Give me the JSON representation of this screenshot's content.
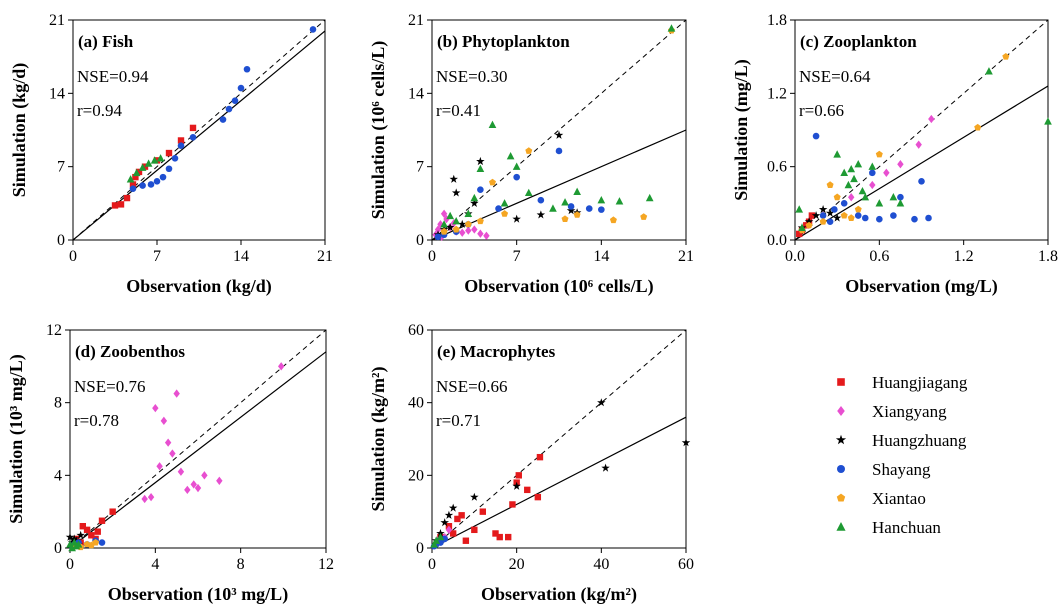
{
  "series_styles": [
    {
      "name": "Huangjiagang",
      "color": "#e41a1c",
      "marker": "square"
    },
    {
      "name": "Xiangyang",
      "color": "#e84fd0",
      "marker": "diamond"
    },
    {
      "name": "Huangzhuang",
      "color": "#000000",
      "marker": "star"
    },
    {
      "name": "Shayang",
      "color": "#1f4fd1",
      "marker": "circle"
    },
    {
      "name": "Xiantao",
      "color": "#f5a623",
      "marker": "pentagon"
    },
    {
      "name": "Hanchuan",
      "color": "#1e9a33",
      "marker": "triangle"
    }
  ],
  "chart_data": [
    {
      "type": "scatter",
      "title": "(a) Fish",
      "nse": "NSE=0.94",
      "r": "r=0.94",
      "xlabel": "Observation (kg/d)",
      "ylabel": "Simulation (kg/d)",
      "xlim": [
        0,
        21
      ],
      "ylim": [
        0,
        21
      ],
      "xticks": [
        "0",
        "7",
        "14",
        "21"
      ],
      "yticks": [
        "0",
        "7",
        "14",
        "21"
      ],
      "fit_slope": 0.95,
      "show_one_to_one": true,
      "series": [
        {
          "name": "Huangjiagang",
          "x": [
            3.5,
            4.0,
            4.5,
            5.0,
            5.2,
            5.5,
            6.0,
            7.0,
            8.0,
            9.0,
            10.0
          ],
          "y": [
            3.3,
            3.4,
            4.0,
            5.3,
            6.0,
            6.5,
            7.0,
            7.6,
            8.3,
            9.5,
            10.7
          ]
        },
        {
          "name": "Shayang",
          "x": [
            5.0,
            5.8,
            6.5,
            7.0,
            7.5,
            8.0,
            8.5,
            9.0,
            10.0,
            12.5,
            13.0,
            13.5,
            14.0,
            14.5,
            20.0
          ],
          "y": [
            4.9,
            5.2,
            5.3,
            5.6,
            6.0,
            6.8,
            7.8,
            9.0,
            9.8,
            11.5,
            12.5,
            13.3,
            14.5,
            16.3,
            20.1
          ]
        },
        {
          "name": "Hanchuan",
          "x": [
            4.8,
            5.3,
            5.8,
            6.3,
            6.8,
            7.3
          ],
          "y": [
            5.8,
            6.4,
            6.9,
            7.3,
            7.6,
            7.8
          ]
        }
      ]
    },
    {
      "type": "scatter",
      "title": "(b) Phytoplankton",
      "nse": "NSE=0.30",
      "r": "r=0.41",
      "xlabel": "Observation (10⁶ cells/L)",
      "ylabel": "Simulation (10⁶ cells/L)",
      "xlim": [
        0,
        21
      ],
      "ylim": [
        0,
        21
      ],
      "xticks": [
        "0",
        "7",
        "14",
        "21"
      ],
      "yticks": [
        "0",
        "7",
        "14",
        "21"
      ],
      "fit_slope": 0.5,
      "show_one_to_one": true,
      "series": [
        {
          "name": "Xiangyang",
          "x": [
            0.3,
            0.5,
            0.7,
            1.0,
            1.2,
            1.5,
            2.0,
            2.5,
            3.0,
            3.5,
            4.0,
            4.5,
            0.8,
            1.8
          ],
          "y": [
            0.5,
            1.0,
            1.5,
            2.5,
            2.0,
            1.2,
            0.8,
            0.7,
            0.9,
            1.0,
            0.6,
            0.4,
            0.3,
            1.6
          ]
        },
        {
          "name": "Huangzhuang",
          "x": [
            0.5,
            1.0,
            1.5,
            2.0,
            1.8,
            3.0,
            4.0,
            7.0,
            9.0,
            10.5,
            12.0,
            11.5,
            2.5,
            3.5
          ],
          "y": [
            0.5,
            1.0,
            1.2,
            4.5,
            5.8,
            2.5,
            7.5,
            2.0,
            2.4,
            10.0,
            2.6,
            2.8,
            1.5,
            3.5
          ]
        },
        {
          "name": "Shayang",
          "x": [
            0.5,
            1.0,
            2.0,
            3.0,
            4.0,
            5.5,
            7.0,
            9.0,
            10.5,
            11.5,
            13.0,
            14.0
          ],
          "y": [
            0.3,
            0.5,
            0.8,
            1.5,
            4.8,
            3.0,
            6.0,
            3.8,
            8.5,
            3.2,
            3.0,
            2.9
          ]
        },
        {
          "name": "Xiantao",
          "x": [
            1.0,
            2.0,
            3.0,
            4.0,
            5.0,
            6.0,
            8.0,
            11.0,
            12.0,
            15.0,
            17.5,
            19.8
          ],
          "y": [
            0.8,
            1.0,
            1.5,
            1.8,
            5.5,
            2.5,
            8.5,
            2.0,
            2.4,
            1.9,
            2.2,
            20.0
          ]
        },
        {
          "name": "Hanchuan",
          "x": [
            1.0,
            1.5,
            2.0,
            3.0,
            3.5,
            4.0,
            5.0,
            6.0,
            6.5,
            7.0,
            8.0,
            10.0,
            11.0,
            12.0,
            14.0,
            15.5,
            18.0,
            19.8
          ],
          "y": [
            1.5,
            2.3,
            1.8,
            2.5,
            4.0,
            6.8,
            11.0,
            3.5,
            8.0,
            7.0,
            4.5,
            3.0,
            3.6,
            4.6,
            3.8,
            3.7,
            4.0,
            20.2
          ]
        }
      ]
    },
    {
      "type": "scatter",
      "title": "(c) Zooplankton",
      "nse": "NSE=0.64",
      "r": "r=0.66",
      "xlabel": "Observation (mg/L)",
      "ylabel": "Simulation (mg/L)",
      "xlim": [
        0,
        1.8
      ],
      "ylim": [
        0,
        1.8
      ],
      "xticks": [
        "0.0",
        "0.6",
        "1.2",
        "1.8"
      ],
      "yticks": [
        "0.0",
        "0.6",
        "1.2",
        "1.8"
      ],
      "fit_slope": 0.7,
      "show_one_to_one": true,
      "series": [
        {
          "name": "Huangjiagang",
          "x": [
            0.03,
            0.05,
            0.08,
            0.1,
            0.12
          ],
          "y": [
            0.05,
            0.08,
            0.12,
            0.15,
            0.2
          ]
        },
        {
          "name": "Xiangyang",
          "x": [
            0.2,
            0.4,
            0.55,
            0.65,
            0.75,
            0.88,
            0.97
          ],
          "y": [
            0.2,
            0.35,
            0.45,
            0.55,
            0.62,
            0.78,
            0.99
          ]
        },
        {
          "name": "Huangzhuang",
          "x": [
            0.05,
            0.1,
            0.15,
            0.2,
            0.25,
            0.3
          ],
          "y": [
            0.1,
            0.15,
            0.2,
            0.25,
            0.22,
            0.18
          ]
        },
        {
          "name": "Shayang",
          "x": [
            0.15,
            0.2,
            0.25,
            0.28,
            0.35,
            0.45,
            0.5,
            0.55,
            0.6,
            0.7,
            0.75,
            0.85,
            0.9,
            0.95
          ],
          "y": [
            0.85,
            0.2,
            0.15,
            0.25,
            0.3,
            0.2,
            0.18,
            0.55,
            0.17,
            0.2,
            0.35,
            0.17,
            0.48,
            0.18
          ]
        },
        {
          "name": "Xiantao",
          "x": [
            0.05,
            0.1,
            0.2,
            0.25,
            0.3,
            0.35,
            0.4,
            0.45,
            0.6,
            1.3,
            1.5
          ],
          "y": [
            0.08,
            0.12,
            0.15,
            0.45,
            0.35,
            0.2,
            0.18,
            0.25,
            0.7,
            0.92,
            1.5
          ]
        },
        {
          "name": "Hanchuan",
          "x": [
            0.03,
            0.05,
            0.3,
            0.35,
            0.38,
            0.4,
            0.42,
            0.45,
            0.48,
            0.5,
            0.55,
            0.6,
            0.7,
            0.75,
            1.38,
            1.8
          ],
          "y": [
            0.25,
            0.1,
            0.7,
            0.55,
            0.45,
            0.58,
            0.5,
            0.62,
            0.4,
            0.35,
            0.6,
            0.3,
            0.35,
            0.3,
            1.38,
            0.97
          ]
        }
      ]
    },
    {
      "type": "scatter",
      "title": "(d) Zoobenthos",
      "nse": "NSE=0.76",
      "r": "r=0.78",
      "xlabel": "Observation (10³ mg/L)",
      "ylabel": "Simulation (10³ mg/L)",
      "xlim": [
        0,
        12
      ],
      "ylim": [
        0,
        12
      ],
      "xticks": [
        "0",
        "4",
        "8",
        "12"
      ],
      "yticks": [
        "0",
        "4",
        "8",
        "12"
      ],
      "fit_slope": 0.9,
      "show_one_to_one": true,
      "series": [
        {
          "name": "Huangjiagang",
          "x": [
            0.3,
            0.5,
            0.8,
            1.0,
            1.2,
            1.5,
            2.0,
            0.6,
            1.3
          ],
          "y": [
            0.5,
            0.3,
            1.0,
            0.7,
            0.5,
            1.5,
            2.0,
            1.2,
            0.9
          ]
        },
        {
          "name": "Xiangyang",
          "x": [
            3.5,
            3.8,
            4.0,
            4.2,
            4.4,
            4.6,
            4.8,
            5.0,
            5.2,
            5.5,
            5.8,
            6.0,
            6.3,
            7.0,
            9.9
          ],
          "y": [
            2.7,
            2.8,
            7.7,
            4.5,
            7.0,
            5.8,
            5.2,
            8.5,
            4.2,
            3.2,
            3.5,
            3.3,
            4.0,
            3.7,
            10.0
          ]
        },
        {
          "name": "Huangzhuang",
          "x": [
            0.0,
            0.1,
            0.2,
            0.3,
            0.4,
            0.5
          ],
          "y": [
            0.6,
            0.3,
            0.5,
            0.4,
            0.2,
            0.7
          ]
        },
        {
          "name": "Shayang",
          "x": [
            0.1,
            0.2,
            0.4,
            0.8,
            1.2,
            1.5
          ],
          "y": [
            0.1,
            0.2,
            0.3,
            0.2,
            0.4,
            0.3
          ]
        },
        {
          "name": "Xiantao",
          "x": [
            0.2,
            0.5,
            0.8,
            1.0,
            1.2
          ],
          "y": [
            0.1,
            0.05,
            0.2,
            0.15,
            0.3
          ]
        },
        {
          "name": "Hanchuan",
          "x": [
            0.0,
            0.1,
            0.2,
            0.3,
            0.4
          ],
          "y": [
            0.2,
            0.0,
            0.3,
            0.1,
            0.2
          ]
        }
      ]
    },
    {
      "type": "scatter",
      "title": "(e) Macrophytes",
      "nse": "NSE=0.66",
      "r": "r=0.71",
      "xlabel": "Observation (kg/m²)",
      "ylabel": "Simulation (kg/m²)",
      "xlim": [
        0,
        60
      ],
      "ylim": [
        0,
        60
      ],
      "xticks": [
        "0",
        "20",
        "40",
        "60"
      ],
      "yticks": [
        "0",
        "20",
        "40",
        "60"
      ],
      "fit_slope": 0.6,
      "show_one_to_one": true,
      "series": [
        {
          "name": "Huangjiagang",
          "x": [
            2,
            4,
            5,
            6,
            7,
            8,
            10,
            12,
            15,
            16,
            18,
            19,
            20,
            20.5,
            22.5,
            25,
            25.5
          ],
          "y": [
            3,
            6,
            4,
            8,
            9,
            2,
            5,
            10,
            4,
            3,
            3,
            12,
            18,
            20,
            16,
            14,
            25
          ]
        },
        {
          "name": "Xiangyang",
          "x": [
            1,
            2,
            3,
            4
          ],
          "y": [
            1.5,
            2.5,
            3,
            5
          ]
        },
        {
          "name": "Huangzhuang",
          "x": [
            1,
            2,
            3,
            4,
            5,
            10,
            20,
            40,
            41,
            60
          ],
          "y": [
            2,
            4,
            7,
            9,
            11,
            14,
            17,
            40,
            22,
            29
          ]
        },
        {
          "name": "Shayang",
          "x": [
            0.5,
            1,
            1.5,
            2,
            3
          ],
          "y": [
            0.5,
            1,
            2,
            1.5,
            2.5
          ]
        },
        {
          "name": "Hanchuan",
          "x": [
            0.5,
            1,
            2
          ],
          "y": [
            1,
            2,
            3
          ]
        }
      ]
    }
  ]
}
